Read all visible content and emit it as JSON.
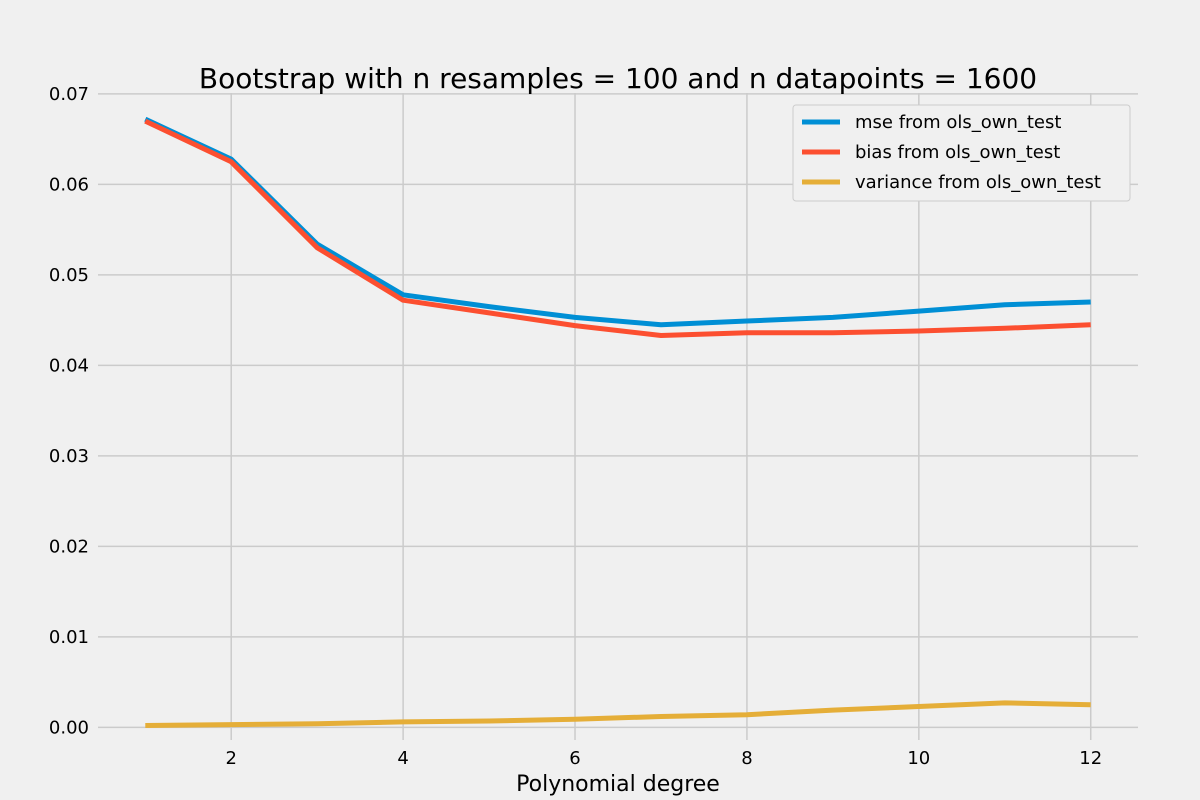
{
  "chart_data": {
    "type": "line",
    "title": "Bootstrap with n resamples = 100 and n datapoints = 1600",
    "xlabel": "Polynomial degree",
    "ylabel": "",
    "x": [
      1,
      2,
      3,
      4,
      5,
      6,
      7,
      8,
      9,
      10,
      11,
      12
    ],
    "xlim": [
      0.45,
      12.55
    ],
    "ylim": [
      -0.0014,
      0.0701
    ],
    "xticks": [
      2,
      4,
      6,
      8,
      10,
      12
    ],
    "yticks": [
      0.0,
      0.01,
      0.02,
      0.03,
      0.04,
      0.05,
      0.06,
      0.07
    ],
    "ytick_labels": [
      "0.00",
      "0.01",
      "0.02",
      "0.03",
      "0.04",
      "0.05",
      "0.06",
      "0.07"
    ],
    "grid": true,
    "legend_position": "top-right",
    "series": [
      {
        "name": "mse from ols_own_test",
        "color": "#008fd5",
        "values": [
          0.0672,
          0.0628,
          0.0534,
          0.0478,
          0.0465,
          0.0453,
          0.0445,
          0.0449,
          0.0453,
          0.046,
          0.0467,
          0.047
        ]
      },
      {
        "name": "bias from ols_own_test",
        "color": "#fc4f30",
        "values": [
          0.067,
          0.0625,
          0.053,
          0.0472,
          0.0458,
          0.0444,
          0.0433,
          0.0436,
          0.0436,
          0.0438,
          0.0441,
          0.0445
        ]
      },
      {
        "name": "variance from ols_own_test",
        "color": "#e5ae38",
        "values": [
          0.0002,
          0.0003,
          0.0004,
          0.0006,
          0.0007,
          0.0009,
          0.0012,
          0.0014,
          0.0019,
          0.0023,
          0.0027,
          0.0025
        ]
      }
    ]
  }
}
